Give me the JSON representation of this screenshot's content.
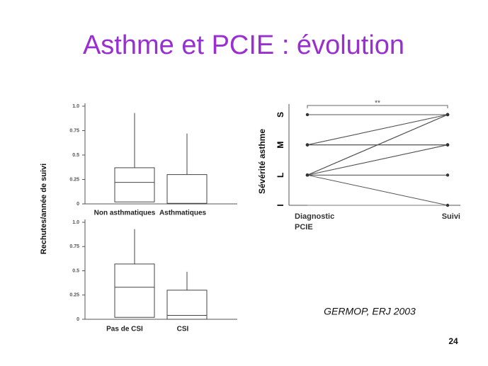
{
  "title": "Asthme et PCIE : évolution",
  "citation": "GERMOP, ERJ 2003",
  "page_number": "24",
  "chart_data": [
    {
      "type": "box",
      "y_label": "Rechutes/année de suivi",
      "categories": [
        "Non asthmatiques",
        "Asthmatiques"
      ],
      "boxes": [
        {
          "min": 0.02,
          "q1": 0.02,
          "median": 0.22,
          "q3": 0.37,
          "max": 0.93
        },
        {
          "min": 0,
          "q1": 0,
          "median": 0.005,
          "q3": 0.3,
          "max": 0.72
        }
      ],
      "ylim": [
        0,
        1
      ],
      "yticks": [
        0,
        0.25,
        0.5,
        0.75,
        {
          "value": 1,
          "label": "1.0"
        }
      ],
      "color": "#444444"
    },
    {
      "type": "box",
      "categories": [
        "Pas de CSI",
        "CSI"
      ],
      "boxes": [
        {
          "min": 0.02,
          "q1": 0.02,
          "median": 0.33,
          "q3": 0.57,
          "max": 0.93
        },
        {
          "min": 0,
          "q1": 0,
          "median": 0.04,
          "q3": 0.3,
          "max": 0.49
        }
      ],
      "ylim": [
        0,
        1
      ],
      "yticks": [
        0,
        0.25,
        0.5,
        0.75,
        {
          "value": 1,
          "label": "1.0"
        }
      ],
      "color": "#444444"
    },
    {
      "type": "slope",
      "y_label": "Sévérité asthme",
      "annotation": "**",
      "categories": [
        "Diagnostic PCIE",
        "Suivi"
      ],
      "ylim": [
        1,
        4.35
      ],
      "yticks": [
        {
          "value": 1,
          "label": "I"
        },
        {
          "value": 2,
          "label": "L"
        },
        {
          "value": 3,
          "label": "M"
        },
        {
          "value": 4,
          "label": "S"
        }
      ],
      "color": "#555555",
      "series": [
        {
          "values": [
            4,
            4
          ]
        },
        {
          "values": [
            3,
            3
          ]
        },
        {
          "values": [
            3,
            3
          ]
        },
        {
          "values": [
            3,
            3
          ]
        },
        {
          "values": [
            3,
            4
          ]
        },
        {
          "values": [
            3,
            4
          ]
        },
        {
          "values": [
            2,
            4
          ]
        },
        {
          "values": [
            2,
            4
          ]
        },
        {
          "values": [
            2,
            4
          ]
        },
        {
          "values": [
            2,
            3
          ]
        },
        {
          "values": [
            2,
            3
          ]
        },
        {
          "values": [
            2,
            2
          ]
        },
        {
          "values": [
            2,
            1
          ]
        }
      ]
    }
  ]
}
